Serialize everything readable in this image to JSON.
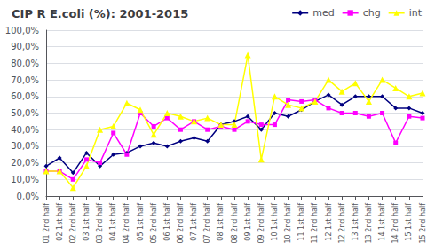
{
  "chart_data": {
    "type": "line",
    "title": "CIP R E.coli (%): 2001-2015",
    "categories": [
      "01 2nd half",
      "02 1st half",
      "02 2nd half",
      "03 1st half",
      "03 2nd half",
      "04 1st half",
      "04 2nd half",
      "05 1st half",
      "05 2nd half",
      "06 1st half",
      "06 2nd half",
      "07 1st half",
      "07 2nd half",
      "08 1st half",
      "08 2nd half",
      "09 1st half",
      "09 2nd half",
      "10 1st half",
      "10 2nd half",
      "11 1st half",
      "11 2nd half",
      "12 1st half",
      "12 2nd half",
      "13 1st half",
      "13 2nd half",
      "14 1st half",
      "14 2nd half",
      "15 1st half",
      "15 2nd half"
    ],
    "series": [
      {
        "name": "med",
        "color": "#000080",
        "marker": "diamond",
        "values": [
          0.18,
          0.23,
          0.14,
          0.26,
          0.18,
          0.25,
          0.26,
          0.3,
          0.32,
          0.3,
          0.33,
          0.35,
          0.33,
          0.43,
          0.45,
          0.48,
          0.4,
          0.5,
          0.48,
          0.52,
          0.57,
          0.61,
          0.55,
          0.6,
          0.6,
          0.6,
          0.53,
          0.53,
          0.5
        ]
      },
      {
        "name": "chg",
        "color": "#FF00FF",
        "marker": "square",
        "values": [
          0.15,
          0.15,
          0.1,
          0.22,
          0.2,
          0.38,
          0.25,
          0.5,
          0.42,
          0.47,
          0.4,
          0.45,
          0.4,
          0.42,
          0.4,
          0.45,
          0.43,
          0.43,
          0.58,
          0.57,
          0.58,
          0.53,
          0.5,
          0.5,
          0.48,
          0.5,
          0.32,
          0.48,
          0.47
        ]
      },
      {
        "name": "int",
        "color": "#FFFF00",
        "marker": "triangle",
        "values": [
          0.15,
          0.15,
          0.05,
          0.18,
          0.4,
          0.42,
          0.56,
          0.52,
          0.37,
          0.5,
          0.48,
          0.45,
          0.47,
          0.43,
          0.43,
          0.85,
          0.22,
          0.6,
          0.55,
          0.53,
          0.57,
          0.7,
          0.63,
          0.68,
          0.57,
          0.7,
          0.65,
          0.6,
          0.62
        ]
      }
    ],
    "ylim": [
      0.0,
      1.0
    ],
    "yticks": [
      {
        "value": 0.0,
        "label": "0,0%"
      },
      {
        "value": 0.1,
        "label": "10,0%"
      },
      {
        "value": 0.2,
        "label": "20,0%"
      },
      {
        "value": 0.3,
        "label": "30,0%"
      },
      {
        "value": 0.4,
        "label": "40,0%"
      },
      {
        "value": 0.5,
        "label": "50,0%"
      },
      {
        "value": 0.6,
        "label": "60,0%"
      },
      {
        "value": 0.7,
        "label": "70,0%"
      },
      {
        "value": 0.8,
        "label": "80,0%"
      },
      {
        "value": 0.9,
        "label": "90,0%"
      },
      {
        "value": 1.0,
        "label": "100,0%"
      }
    ],
    "grid": true,
    "legend": "upper right"
  }
}
